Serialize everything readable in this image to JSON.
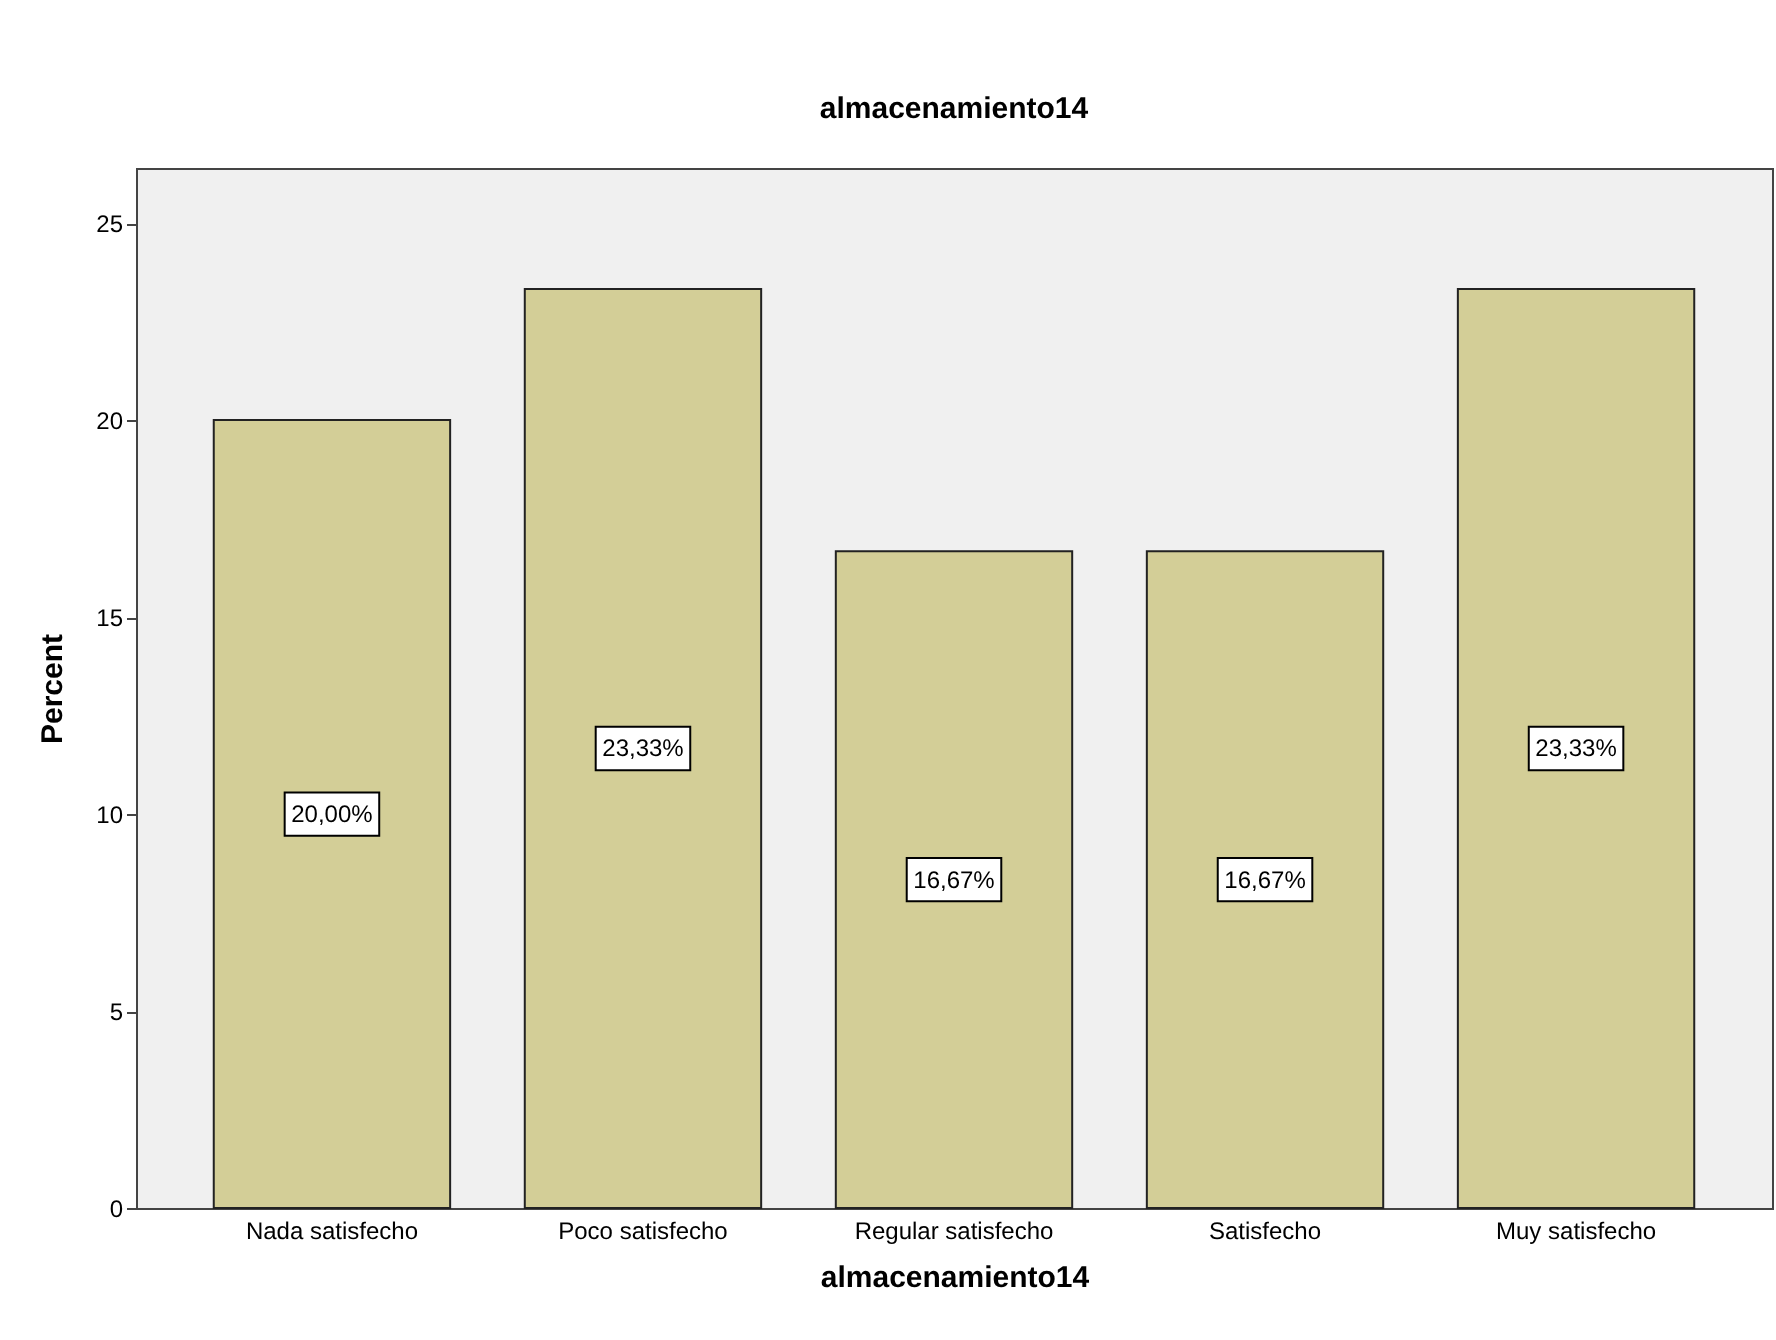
{
  "chart_data": {
    "type": "bar",
    "title": "almacenamiento14",
    "xlabel": "almacenamiento14",
    "ylabel": "Percent",
    "categories": [
      "Nada satisfecho",
      "Poco satisfecho",
      "Regular satisfecho",
      "Satisfecho",
      "Muy satisfecho"
    ],
    "values": [
      20.0,
      23.33,
      16.67,
      16.67,
      23.33
    ],
    "value_labels": [
      "20,00%",
      "23,33%",
      "16,67%",
      "16,67%",
      "23,33%"
    ],
    "color": "#d3ce97",
    "ylim": [
      0,
      26.4
    ],
    "yticks": [
      0,
      5,
      10,
      15,
      20,
      25
    ],
    "grid": false
  }
}
